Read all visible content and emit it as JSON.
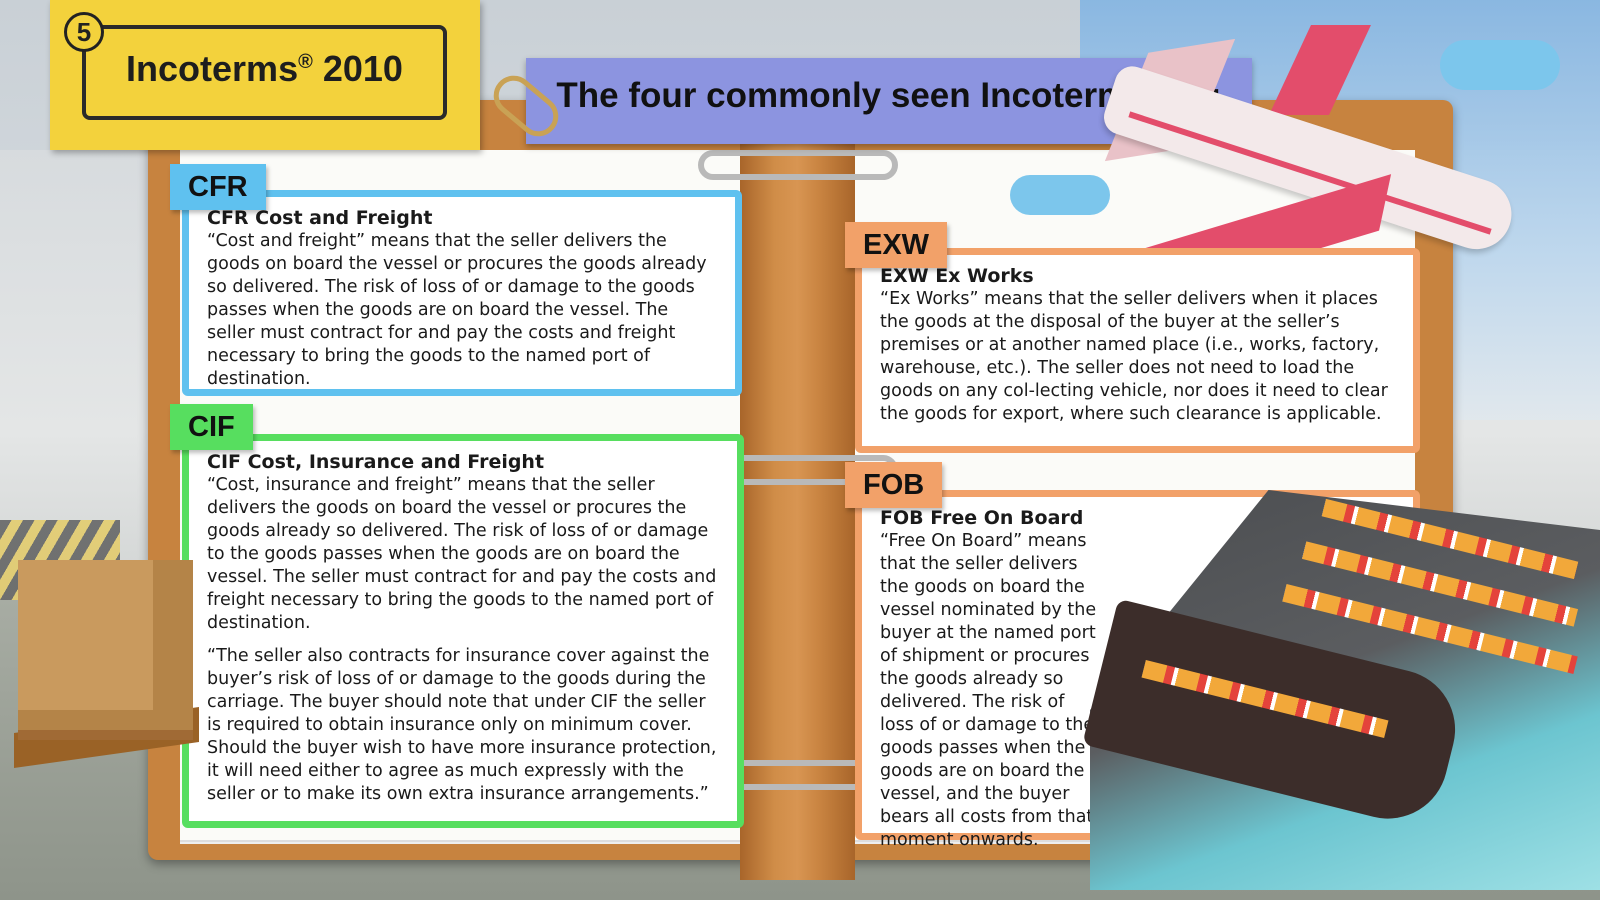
{
  "header": {
    "number": "5",
    "title": "Incoterms",
    "title_mark": "®",
    "title_year": "2010",
    "banner": "The four commonly seen Incoterms are:"
  },
  "terms": {
    "cfr": {
      "tab": "CFR",
      "heading": "CFR Cost and Freight",
      "body": "“Cost and freight” means that the seller delivers  the goods on board the vessel  or procures the goods already so delivered. The risk of loss of or damage to the goods passes when the goods are on board the vessel. The seller must contract for and pay the costs and freight necessary to bring the goods to the named port of destination."
    },
    "cif": {
      "tab": "CIF",
      "heading": "CIF Cost, Insurance and Freight",
      "body1": "“Cost, insurance and freight” means that the seller delivers the goods on board the vessel  or procures the goods already so delivered. The risk of loss of or damage to the goods passes when the goods are on board the vessel. The seller must contract for and pay the costs and freight necessary to bring the goods to the named port of destination.",
      "body2": "“The seller also contracts for insurance cover against the buyer’s risk of loss of or damage to the goods during the carriage. The buyer should note that under CIF the seller is required to obtain insurance only on minimum cover. Should the buyer wish to have more insurance protection, it will need either to agree as much expressly with the seller or to make its own extra insurance arrangements.”"
    },
    "exw": {
      "tab": "EXW",
      "heading": "EXW Ex Works",
      "body": "“Ex Works” means that the seller delivers when it places the goods at the disposal of the buyer at the seller’s premises or at another named place (i.e., works, factory, warehouse, etc.). The seller does not need to load the goods on any col-lecting vehicle, nor does it need to clear the goods for export, where such clearance is applicable."
    },
    "fob": {
      "tab": "FOB",
      "heading": "FOB Free On Board",
      "body": "“Free On Board” means that the seller delivers the goods on board the vessel nominated by the buyer at the named port of shipment or procures the goods already so delivered. The risk of loss of or damage to the goods passes when the goods are on board the vessel, and the buyer bears all costs from that moment onwards."
    }
  },
  "colors": {
    "cfr": "#5fc1ef",
    "cif": "#57de5f",
    "exw": "#f2a169",
    "fob": "#f2a169",
    "banner": "#8c94e0",
    "note": "#f3d23c"
  }
}
